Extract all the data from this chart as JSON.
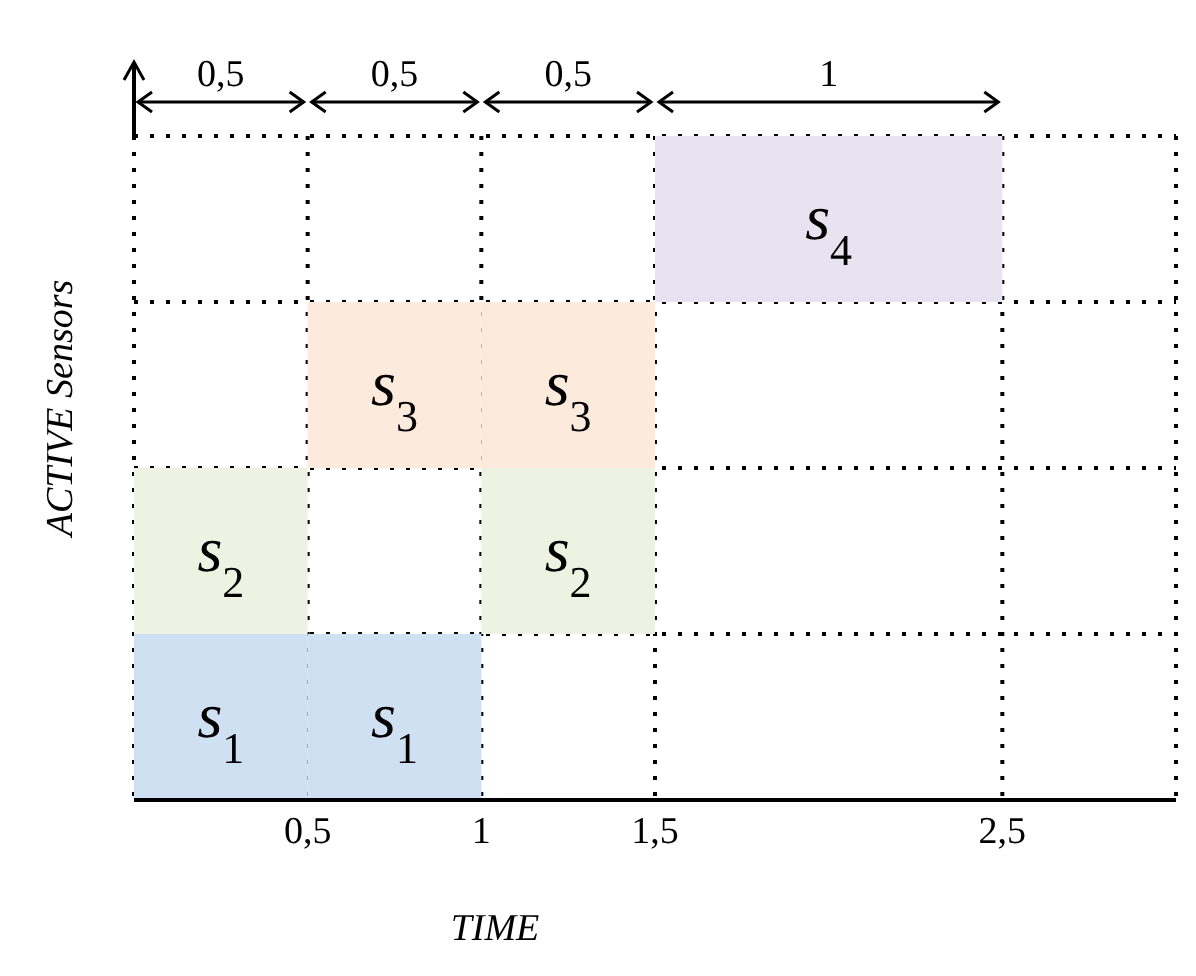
{
  "chart_data": {
    "type": "bar",
    "orientation": "horizontal",
    "xlabel": "TIME",
    "ylabel": "ACTIVE Sensors",
    "categories": [
      null,
      null,
      null,
      null
    ],
    "series": [
      {
        "name": "s$_{4}$",
        "color": "#e8e3f0",
        "base": [
          1.5,
          null,
          null,
          null
        ],
        "values": [
          1,
          null,
          null,
          null
        ]
      },
      {
        "name": "s$_{3}$",
        "color": "#fcebdc",
        "base": [
          null,
          0.5,
          null,
          null
        ],
        "values": [
          null,
          0.5,
          null,
          null
        ]
      },
      {
        "name": "s$_{3}$",
        "color": "#fcebdc",
        "base": [
          null,
          1,
          null,
          null
        ],
        "values": [
          null,
          0.5,
          null,
          null
        ]
      },
      {
        "name": "s$_{2}$",
        "color": "#edf2e2",
        "base": [
          null,
          null,
          0,
          null
        ],
        "values": [
          null,
          null,
          0.5,
          null
        ]
      },
      {
        "name": "s$_{2}$",
        "color": "#edf2e2",
        "base": [
          null,
          null,
          1,
          null
        ],
        "values": [
          null,
          null,
          0.5,
          null
        ]
      },
      {
        "name": "s$_{1}$",
        "color": "#cfe0f3",
        "base": [
          null,
          null,
          null,
          0
        ],
        "values": [
          null,
          null,
          null,
          0.5
        ]
      },
      {
        "name": "s$_{1}$",
        "color": "#cfe0f3",
        "base": [
          null,
          null,
          null,
          0.5
        ],
        "values": [
          null,
          null,
          null,
          0.5
        ]
      }
    ],
    "xlim": [
      0,
      3
    ],
    "xticks": [
      {
        "value": 0.5,
        "label": "0,5"
      },
      1,
      {
        "value": 1.5,
        "label": "1,5"
      },
      {
        "value": 2.5,
        "label": "2,5"
      }
    ],
    "annotations": [
      "0,5",
      "0,5",
      "0,5",
      "1"
    ],
    "tick_labels": "x",
    "grid": true
  }
}
